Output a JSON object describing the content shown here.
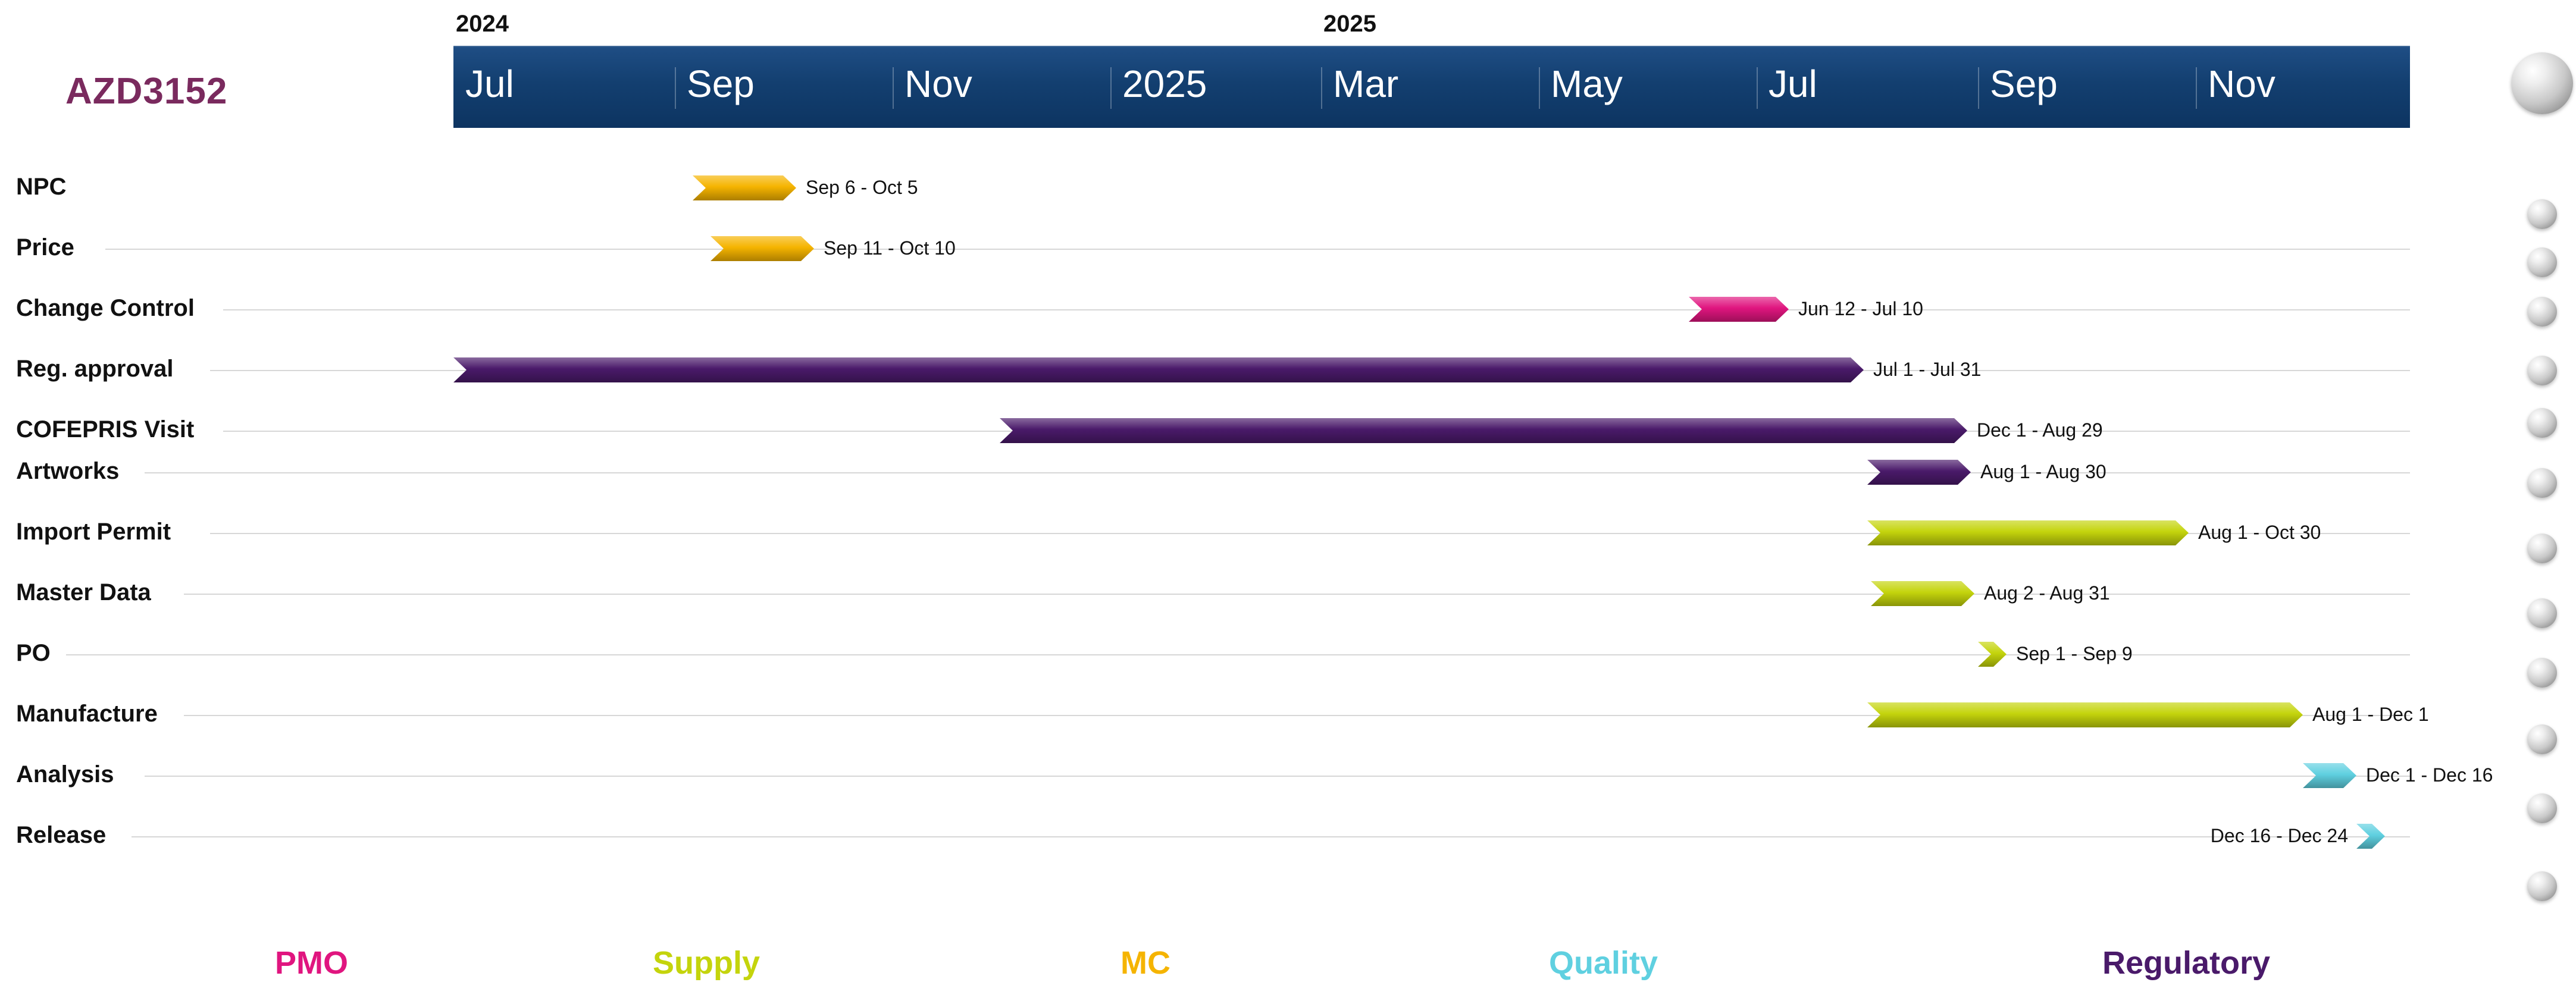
{
  "title": "AZD3152",
  "colors": {
    "title": "#7a2a5e",
    "band": "#133f70",
    "PMO": "#e0157f",
    "Supply": "#c4d40c",
    "MC": "#f5b400",
    "Quality": "#5fd0e0",
    "Regulatory": "#4a1a6a"
  },
  "timeline": {
    "years": [
      {
        "label": "2024",
        "date": "2024-07-01"
      },
      {
        "label": "2025",
        "date": "2025-03-01"
      }
    ],
    "ticks": [
      {
        "label": "Jul",
        "date": "2024-07-01"
      },
      {
        "label": "Sep",
        "date": "2024-09-01"
      },
      {
        "label": "Nov",
        "date": "2024-11-01"
      },
      {
        "label": "2025",
        "date": "2025-01-01"
      },
      {
        "label": "Mar",
        "date": "2025-03-01"
      },
      {
        "label": "May",
        "date": "2025-05-01"
      },
      {
        "label": "Jul",
        "date": "2025-07-01"
      },
      {
        "label": "Sep",
        "date": "2025-09-01"
      },
      {
        "label": "Nov",
        "date": "2025-11-01"
      }
    ]
  },
  "chart_data": {
    "type": "gantt",
    "title": "AZD3152",
    "x_range": [
      "2024-07-01",
      "2025-12-31"
    ],
    "tasks": [
      {
        "name": "NPC",
        "start": "2024-09-06",
        "end": "2024-10-05",
        "category": "MC",
        "label": "Sep 6 - Oct 5"
      },
      {
        "name": "Price",
        "start": "2024-09-11",
        "end": "2024-10-10",
        "category": "MC",
        "label": "Sep 11 - Oct 10"
      },
      {
        "name": "Change Control",
        "start": "2025-06-12",
        "end": "2025-07-10",
        "category": "PMO",
        "label": "Jun 12 - Jul 10"
      },
      {
        "name": "Reg. approval",
        "start": "2024-07-01",
        "end": "2025-07-31",
        "category": "Regulatory",
        "label": "Jul 1 - Jul 31"
      },
      {
        "name": "COFEPRIS Visit",
        "start": "2024-12-01",
        "end": "2025-08-29",
        "category": "Regulatory",
        "label": "Dec 1 - Aug 29"
      },
      {
        "name": "Artworks",
        "start": "2025-08-01",
        "end": "2025-08-30",
        "category": "Regulatory",
        "label": "Aug 1 - Aug 30"
      },
      {
        "name": "Import Permit",
        "start": "2025-08-01",
        "end": "2025-10-30",
        "category": "Supply",
        "label": "Aug 1 - Oct 30"
      },
      {
        "name": "Master Data",
        "start": "2025-08-02",
        "end": "2025-08-31",
        "category": "Supply",
        "label": "Aug 2 - Aug 31"
      },
      {
        "name": "PO",
        "start": "2025-09-01",
        "end": "2025-09-09",
        "category": "Supply",
        "label": "Sep 1 - Sep 9"
      },
      {
        "name": "Manufacture",
        "start": "2025-08-01",
        "end": "2025-12-01",
        "category": "Supply",
        "label": "Aug 1 - Dec 1"
      },
      {
        "name": "Analysis",
        "start": "2025-12-01",
        "end": "2025-12-16",
        "category": "Quality",
        "label": "Dec 1 - Dec 16"
      },
      {
        "name": "Release",
        "start": "2025-12-16",
        "end": "2025-12-24",
        "category": "Quality",
        "label": "Dec 16 - Dec 24",
        "label_side": "left"
      }
    ],
    "legend": [
      "PMO",
      "Supply",
      "MC",
      "Quality",
      "Regulatory"
    ]
  }
}
